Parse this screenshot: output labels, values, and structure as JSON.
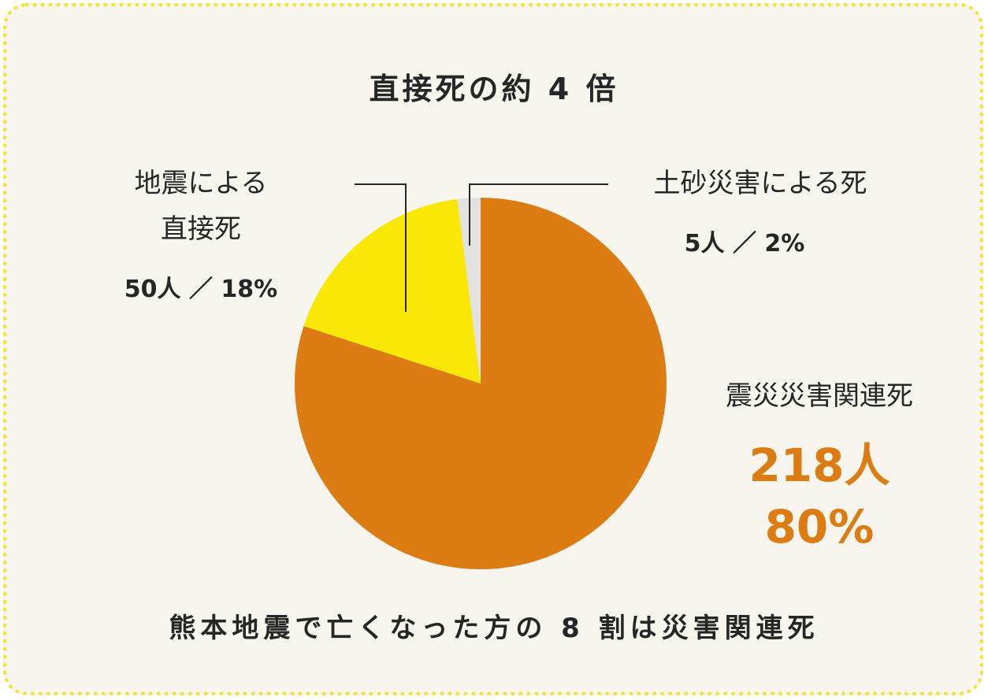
{
  "title": "直接死の約 4 倍",
  "caption": "熊本地震で亡くなった方の 8 割は災害関連死",
  "colors": {
    "background": "#f7f5ee",
    "border": "#f3e63a",
    "accent": "#dc7c12"
  },
  "chart_data": {
    "type": "pie",
    "slices": [
      {
        "label": "震災災害関連死",
        "count": "218人",
        "percent": "80%",
        "value": 80,
        "color": "#dc7c12"
      },
      {
        "label": "地震による直接死",
        "label_lines": [
          "地震による",
          "直接死"
        ],
        "count": "50人",
        "percent": "18%",
        "value": 18,
        "color": "#f9e806"
      },
      {
        "label": "土砂災害による死",
        "count": "5人",
        "percent": "2%",
        "value": 2,
        "color": "#e2e2e0"
      }
    ],
    "labels": {
      "direct": "50人 ／ 18%",
      "landslide": "5人 ／ 2%"
    }
  }
}
